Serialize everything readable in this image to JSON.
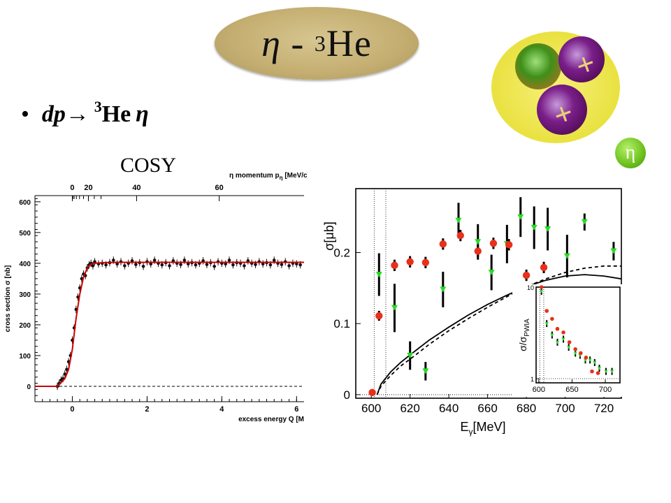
{
  "slide": {
    "title_symbol": "η",
    "title_dash": " - ",
    "title_mass": "3",
    "title_element": "He",
    "bullet_reaction_left": "dp",
    "bullet_arrow": "→",
    "bullet_mass": "3",
    "bullet_element": "He",
    "bullet_eta": "η",
    "cosy_label": "COSY",
    "eta_badge": "η",
    "nucleus_sign": "+"
  },
  "colors": {
    "oval": "#c4ad70",
    "nucleus_outer": "#e8e03a",
    "quark_green": "#3f8f1a",
    "quark_purple": "#7a1f8a",
    "eta_badge": "#6cc11d",
    "fit_red": "#cc0000",
    "red_points": "#e8301a",
    "green_points": "#22dd22"
  },
  "chart_data": [
    {
      "type": "scatter",
      "title": "",
      "xlabel": "excess energy Q [M",
      "ylabel": "cross section σ [nb]",
      "top_axis_label": "η momentum p",
      "top_axis_sub": "η",
      "top_axis_unit": " [MeV/c]",
      "xlim": [
        -1.0,
        6.2
      ],
      "ylim": [
        -50,
        620
      ],
      "x_ticks": [
        0,
        2,
        4,
        6
      ],
      "y_ticks": [
        0,
        100,
        200,
        300,
        400,
        500,
        600
      ],
      "top_ticks": [
        {
          "label": "0",
          "q": 0.0
        },
        {
          "label": "20",
          "q": 0.43
        },
        {
          "label": "40",
          "q": 1.72
        },
        {
          "label": "60",
          "q": 3.93
        }
      ],
      "baseline": 0,
      "series": [
        {
          "kind": "fit",
          "color": "#cc0000",
          "x": [
            -1.0,
            -0.4,
            -0.2,
            -0.1,
            0.0,
            0.1,
            0.2,
            0.3,
            0.4,
            0.5,
            0.6,
            0.8,
            1.2,
            2.0,
            3.0,
            4.0,
            5.0,
            6.2
          ],
          "y": [
            0,
            0,
            25,
            55,
            120,
            220,
            300,
            355,
            385,
            397,
            400,
            402,
            403,
            403,
            403,
            403,
            403,
            403
          ]
        },
        {
          "kind": "points",
          "color": "#111111",
          "x": [
            -0.4,
            -0.35,
            -0.3,
            -0.25,
            -0.2,
            -0.15,
            -0.1,
            -0.05,
            0.0,
            0.05,
            0.1,
            0.15,
            0.2,
            0.25,
            0.3,
            0.35,
            0.4,
            0.45,
            0.5,
            0.55,
            0.6,
            0.7,
            0.8,
            0.9,
            1.0,
            1.1,
            1.2,
            1.3,
            1.4,
            1.5,
            1.6,
            1.7,
            1.8,
            1.9,
            2.0,
            2.1,
            2.2,
            2.3,
            2.4,
            2.5,
            2.6,
            2.7,
            2.8,
            2.9,
            3.0,
            3.1,
            3.2,
            3.3,
            3.4,
            3.5,
            3.6,
            3.7,
            3.8,
            3.9,
            4.0,
            4.1,
            4.2,
            4.3,
            4.4,
            4.5,
            4.6,
            4.7,
            4.8,
            4.9,
            5.0,
            5.1,
            5.2,
            5.3,
            5.4,
            5.5,
            5.6,
            5.7,
            5.8,
            5.9,
            6.0,
            6.1
          ],
          "y": [
            0,
            10,
            20,
            25,
            40,
            55,
            80,
            100,
            150,
            190,
            250,
            290,
            320,
            350,
            365,
            360,
            385,
            395,
            400,
            392,
            405,
            398,
            400,
            395,
            402,
            410,
            398,
            405,
            392,
            400,
            408,
            396,
            402,
            390,
            405,
            398,
            410,
            400,
            395,
            402,
            392,
            408,
            400,
            396,
            410,
            398,
            402,
            395,
            400,
            408,
            396,
            402,
            390,
            405,
            400,
            398,
            410,
            395,
            402,
            400,
            392,
            408,
            400,
            396,
            405,
            398,
            402,
            395,
            410,
            400,
            396,
            405,
            392,
            400,
            398,
            395
          ],
          "err": 12
        }
      ]
    },
    {
      "type": "scatter",
      "title": "",
      "xlabel": "E",
      "xlabel_sub": "γ",
      "xlabel_unit": "[MeV]",
      "ylabel": "σ[μb]",
      "xlim": [
        592,
        729
      ],
      "ylim": [
        -0.005,
        0.29
      ],
      "x_ticks": [
        600,
        620,
        640,
        660,
        680,
        700,
        720
      ],
      "y_ticks": [
        0,
        0.1,
        0.2
      ],
      "y_tick_labels": [
        "0",
        "0.1",
        "0.2"
      ],
      "vlines": [
        601.5,
        607.5
      ],
      "series": [
        {
          "kind": "curve",
          "style": "solid",
          "x": [
            603,
            605,
            610,
            615,
            620,
            630,
            640,
            650,
            660,
            670,
            680,
            690,
            700,
            710,
            720,
            729
          ],
          "y": [
            0,
            0.015,
            0.032,
            0.045,
            0.056,
            0.077,
            0.095,
            0.112,
            0.127,
            0.14,
            0.152,
            0.161,
            0.167,
            0.169,
            0.167,
            0.163
          ]
        },
        {
          "kind": "curve",
          "style": "dashed",
          "x": [
            603,
            605,
            610,
            615,
            620,
            630,
            640,
            650,
            660,
            670,
            680,
            690,
            700,
            710,
            720,
            729
          ],
          "y": [
            0,
            0.012,
            0.027,
            0.04,
            0.05,
            0.071,
            0.09,
            0.107,
            0.123,
            0.138,
            0.152,
            0.163,
            0.172,
            0.178,
            0.181,
            0.181
          ]
        },
        {
          "kind": "points",
          "name": "",
          "color": "#e8301a",
          "x": [
            600.5,
            604,
            612,
            620,
            628,
            637,
            646,
            655,
            663,
            671,
            680,
            689
          ],
          "y": [
            0.003,
            0.111,
            0.182,
            0.187,
            0.186,
            0.212,
            0.224,
            0.202,
            0.213,
            0.211,
            0.168,
            0.179
          ],
          "err": [
            0.002,
            0.007,
            0.008,
            0.008,
            0.008,
            0.008,
            0.008,
            0.008,
            0.008,
            0.008,
            0.008,
            0.008
          ]
        },
        {
          "kind": "triangles",
          "name": "",
          "color": "#22dd22",
          "x": [
            604,
            612,
            620,
            628,
            637,
            645,
            655,
            662,
            670,
            677,
            684,
            691,
            701,
            710,
            725
          ],
          "y": [
            0.169,
            0.122,
            0.055,
            0.033,
            0.148,
            0.245,
            0.215,
            0.172,
            0.212,
            0.25,
            0.235,
            0.233,
            0.195,
            0.243,
            0.202
          ],
          "err": [
            0.03,
            0.034,
            0.02,
            0.013,
            0.025,
            0.025,
            0.025,
            0.025,
            0.027,
            0.028,
            0.03,
            0.03,
            0.03,
            0.012,
            0.013
          ]
        }
      ]
    },
    {
      "type": "scatter",
      "title": "",
      "ylabel": "σ/σ",
      "ylabel_sub": "PWIA",
      "xlim": [
        596,
        722
      ],
      "ylim_log": [
        0.9,
        10
      ],
      "x_ticks": [
        600,
        650,
        700
      ],
      "y_ticks": [
        1,
        10
      ],
      "vlines": [
        601.5,
        607.5
      ],
      "hline": 1,
      "series": [
        {
          "kind": "points",
          "color": "#e8301a",
          "x": [
            604,
            612,
            620,
            628,
            637,
            646,
            655,
            663,
            671,
            680,
            689
          ],
          "y": [
            10,
            5.5,
            4.5,
            3.5,
            3.2,
            2.5,
            2.1,
            1.9,
            1.7,
            1.2,
            1.15
          ]
        },
        {
          "kind": "triangles",
          "color": "#22dd22",
          "x": [
            604,
            612,
            620,
            628,
            637,
            645,
            655,
            662,
            670,
            677,
            684,
            691,
            701,
            710
          ],
          "y": [
            9,
            4,
            3,
            2.5,
            2.7,
            2.2,
            1.9,
            1.8,
            1.6,
            1.6,
            1.5,
            1.3,
            1.2,
            1.2
          ]
        }
      ]
    }
  ]
}
